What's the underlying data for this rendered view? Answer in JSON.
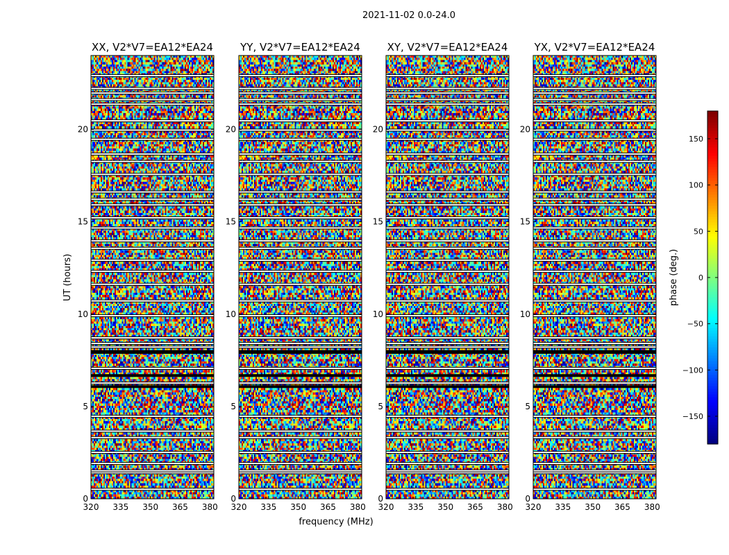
{
  "chart_data": {
    "type": "heatmap",
    "suptitle": "2021-11-02 0.0-24.0",
    "xlabel": "frequency (MHz)",
    "ylabel": "UT (hours)",
    "xlim": [
      320,
      382
    ],
    "ylim": [
      0,
      24
    ],
    "xticks": [
      320,
      335,
      350,
      365,
      380
    ],
    "yticks": [
      0,
      5,
      10,
      15,
      20
    ],
    "panels": [
      {
        "title": "XX, V2*V7=EA12*EA24"
      },
      {
        "title": "YY, V2*V7=EA12*EA24"
      },
      {
        "title": "XY, V2*V7=EA12*EA24"
      },
      {
        "title": "YX, V2*V7=EA12*EA24"
      }
    ],
    "colorbar": {
      "label": "phase (deg.)",
      "range": [
        -180,
        180
      ],
      "ticks": [
        150,
        100,
        50,
        0,
        -50,
        -100,
        -150
      ],
      "tick_labels": [
        "150",
        "100",
        "50",
        "0",
        "−50",
        "−100",
        "−150"
      ],
      "colormap": "jet"
    },
    "gaps_ut_hours": [
      0.55,
      1.45,
      1.55,
      1.95,
      2.55,
      3.35,
      3.7,
      4.5,
      6.3,
      7.1,
      8.25,
      8.45,
      8.75,
      9.95,
      10.75,
      11.65,
      12.35,
      12.95,
      13.6,
      14.0,
      14.7,
      15.25,
      15.95,
      16.25,
      16.65,
      17.6,
      18.3,
      18.7,
      19.5,
      20.0,
      20.5,
      21.4,
      21.65,
      22.0,
      22.25,
      22.95
    ],
    "flagged_ut_hours": [
      [
        7.85,
        8.05
      ],
      [
        6.6,
        6.75
      ],
      [
        6.0,
        6.15
      ]
    ]
  }
}
